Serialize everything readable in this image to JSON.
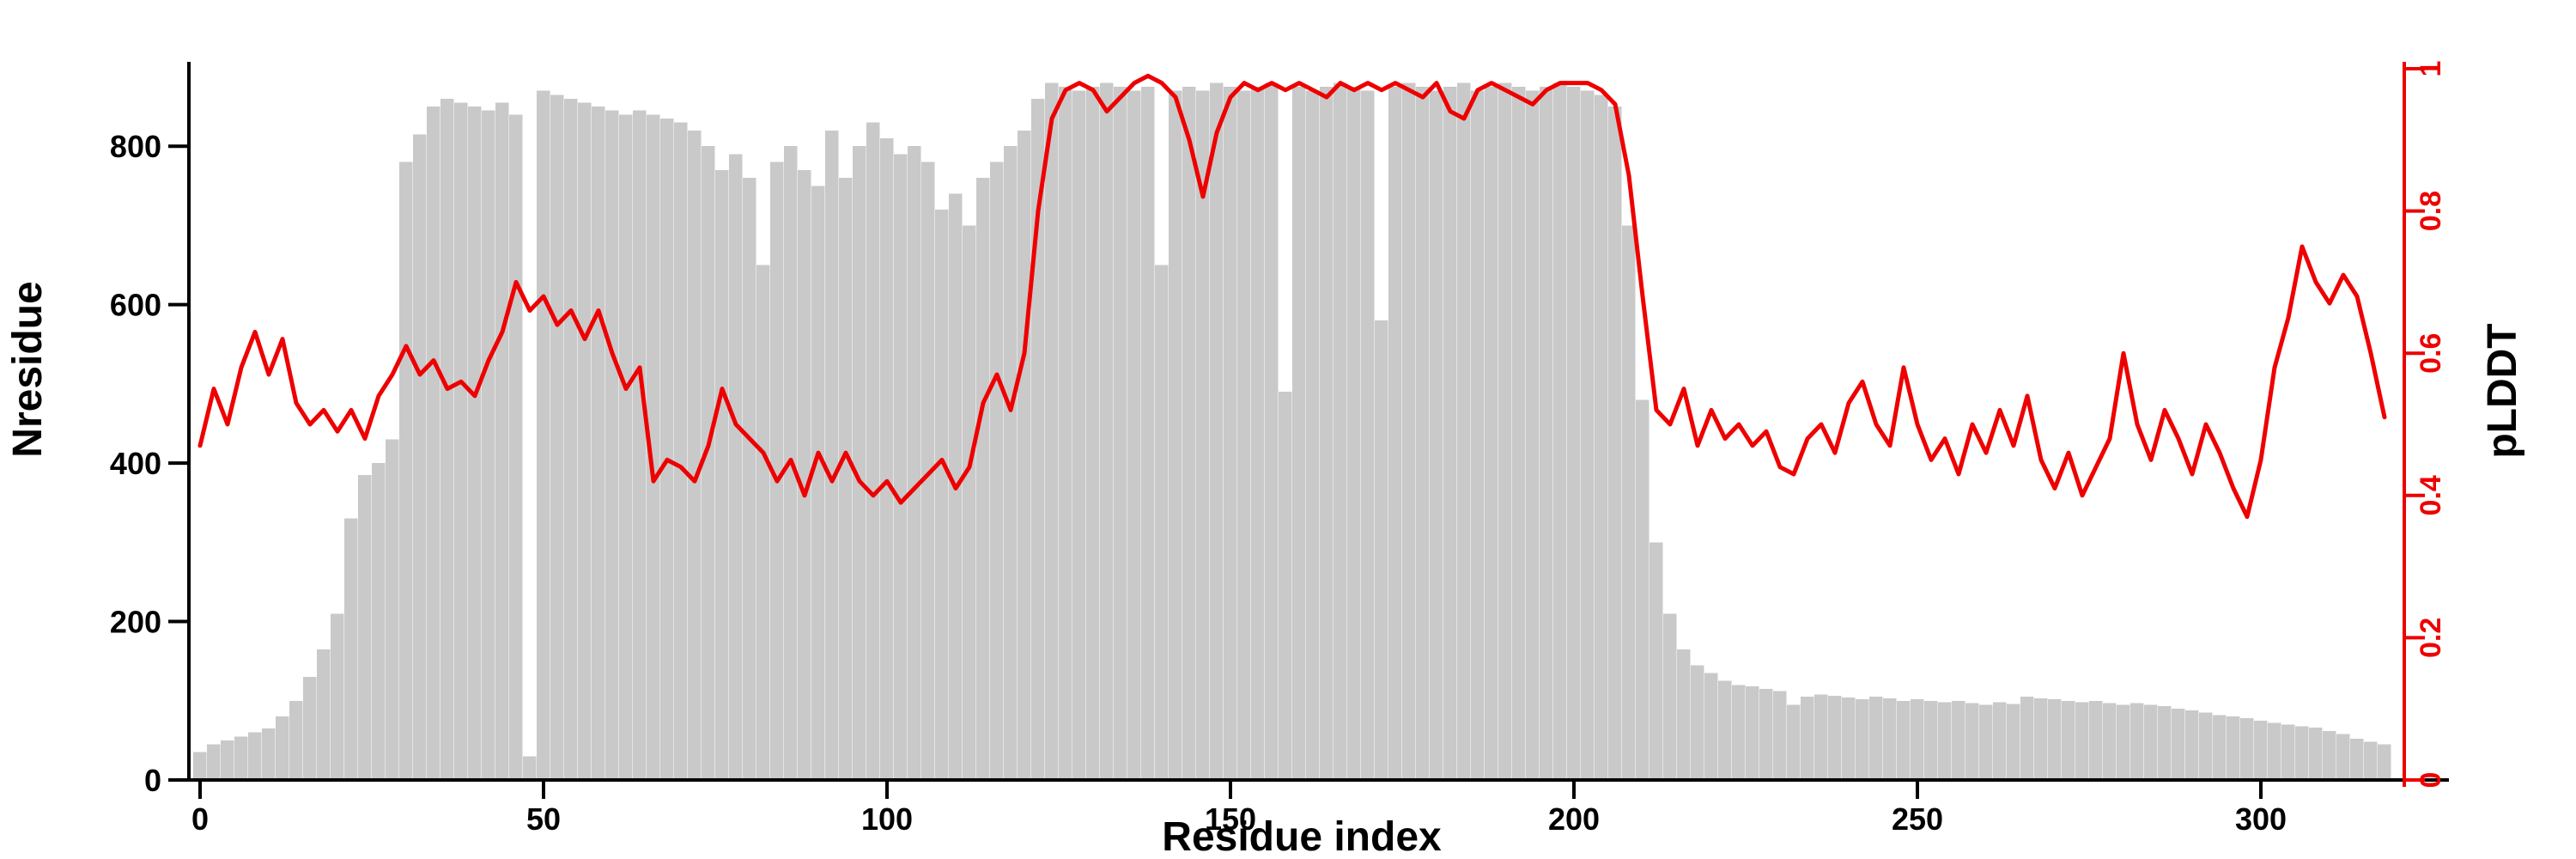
{
  "page": {
    "background": "#ffffff"
  },
  "colors": {
    "bar": "#c9c9c9",
    "line": "#ee0000",
    "left_axis": "#000000",
    "bottom_axis": "#000000",
    "right_axis": "#ee0000",
    "right_labels": "#ee0000"
  },
  "chart_data": {
    "type": "combo",
    "title": "",
    "xlabel": "Residue index",
    "ylabel_left": "Nresidue",
    "ylabel_right": "pLDDT",
    "xlim": [
      -5,
      322
    ],
    "ylim_left": [
      0,
      900
    ],
    "ylim_right": [
      0,
      1
    ],
    "xticks": [
      0,
      50,
      100,
      150,
      200,
      250,
      300
    ],
    "yticks_left": [
      0,
      200,
      400,
      600,
      800
    ],
    "yticks_right": [
      0,
      0.2,
      0.4,
      0.6,
      0.8,
      1
    ],
    "grid": false,
    "legend": "none",
    "x": [
      0,
      2,
      4,
      6,
      8,
      10,
      12,
      14,
      16,
      18,
      20,
      22,
      24,
      26,
      28,
      30,
      32,
      34,
      36,
      38,
      40,
      42,
      44,
      46,
      48,
      50,
      52,
      54,
      56,
      58,
      60,
      62,
      64,
      66,
      68,
      70,
      72,
      74,
      76,
      78,
      80,
      82,
      84,
      86,
      88,
      90,
      92,
      94,
      96,
      98,
      100,
      102,
      104,
      106,
      108,
      110,
      112,
      114,
      116,
      118,
      120,
      122,
      124,
      126,
      128,
      130,
      132,
      134,
      136,
      138,
      140,
      142,
      144,
      146,
      148,
      150,
      152,
      154,
      156,
      158,
      160,
      162,
      164,
      166,
      168,
      170,
      172,
      174,
      176,
      178,
      180,
      182,
      184,
      186,
      188,
      190,
      192,
      194,
      196,
      198,
      200,
      202,
      204,
      206,
      208,
      210,
      212,
      214,
      216,
      218,
      220,
      222,
      224,
      226,
      228,
      230,
      232,
      234,
      236,
      238,
      240,
      242,
      244,
      246,
      248,
      250,
      252,
      254,
      256,
      258,
      260,
      262,
      264,
      266,
      268,
      270,
      272,
      274,
      276,
      278,
      280,
      282,
      284,
      286,
      288,
      290,
      292,
      294,
      296,
      298,
      300,
      302,
      304,
      306,
      308,
      310,
      312,
      314,
      316,
      318
    ],
    "series": [
      {
        "name": "Nresidue",
        "type": "bar",
        "axis": "left",
        "color": "#c9c9c9",
        "values": [
          35,
          45,
          50,
          55,
          60,
          65,
          80,
          100,
          130,
          165,
          210,
          330,
          385,
          400,
          430,
          780,
          815,
          850,
          860,
          855,
          850,
          845,
          855,
          840,
          30,
          870,
          865,
          860,
          855,
          850,
          845,
          840,
          845,
          840,
          835,
          830,
          820,
          800,
          770,
          790,
          760,
          650,
          780,
          800,
          770,
          750,
          820,
          760,
          800,
          830,
          810,
          790,
          800,
          780,
          720,
          740,
          700,
          760,
          780,
          800,
          820,
          860,
          880,
          875,
          870,
          875,
          880,
          875,
          870,
          875,
          650,
          870,
          875,
          870,
          880,
          875,
          870,
          875,
          880,
          490,
          875,
          870,
          875,
          880,
          875,
          870,
          580,
          875,
          880,
          875,
          870,
          875,
          880,
          870,
          875,
          880,
          875,
          870,
          875,
          880,
          875,
          870,
          865,
          850,
          700,
          480,
          300,
          210,
          165,
          145,
          135,
          125,
          120,
          118,
          115,
          112,
          95,
          105,
          108,
          106,
          104,
          102,
          105,
          103,
          100,
          102,
          100,
          98,
          100,
          97,
          95,
          98,
          96,
          105,
          103,
          102,
          100,
          98,
          100,
          97,
          95,
          97,
          95,
          93,
          90,
          88,
          85,
          82,
          80,
          78,
          75,
          72,
          70,
          68,
          66,
          62,
          58,
          52,
          48,
          45
        ]
      },
      {
        "name": "pLDDT",
        "type": "line",
        "axis": "right",
        "color": "#ee0000",
        "values": [
          0.47,
          0.55,
          0.5,
          0.58,
          0.63,
          0.57,
          0.62,
          0.53,
          0.5,
          0.52,
          0.49,
          0.52,
          0.48,
          0.54,
          0.57,
          0.61,
          0.57,
          0.59,
          0.55,
          0.56,
          0.54,
          0.59,
          0.63,
          0.7,
          0.66,
          0.68,
          0.64,
          0.66,
          0.62,
          0.66,
          0.6,
          0.55,
          0.58,
          0.42,
          0.45,
          0.44,
          0.42,
          0.47,
          0.55,
          0.5,
          0.48,
          0.46,
          0.42,
          0.45,
          0.4,
          0.46,
          0.42,
          0.46,
          0.42,
          0.4,
          0.42,
          0.39,
          0.41,
          0.43,
          0.45,
          0.41,
          0.44,
          0.53,
          0.57,
          0.52,
          0.6,
          0.8,
          0.93,
          0.97,
          0.98,
          0.97,
          0.94,
          0.96,
          0.98,
          0.99,
          0.98,
          0.96,
          0.9,
          0.82,
          0.91,
          0.96,
          0.98,
          0.97,
          0.98,
          0.97,
          0.98,
          0.97,
          0.96,
          0.98,
          0.97,
          0.98,
          0.97,
          0.98,
          0.97,
          0.96,
          0.98,
          0.94,
          0.93,
          0.97,
          0.98,
          0.97,
          0.96,
          0.95,
          0.97,
          0.98,
          0.98,
          0.98,
          0.97,
          0.95,
          0.85,
          0.68,
          0.52,
          0.5,
          0.55,
          0.47,
          0.52,
          0.48,
          0.5,
          0.47,
          0.49,
          0.44,
          0.43,
          0.48,
          0.5,
          0.46,
          0.53,
          0.56,
          0.5,
          0.47,
          0.58,
          0.5,
          0.45,
          0.48,
          0.43,
          0.5,
          0.46,
          0.52,
          0.47,
          0.54,
          0.45,
          0.41,
          0.46,
          0.4,
          0.44,
          0.48,
          0.6,
          0.5,
          0.45,
          0.52,
          0.48,
          0.43,
          0.5,
          0.46,
          0.41,
          0.37,
          0.45,
          0.58,
          0.65,
          0.75,
          0.7,
          0.67,
          0.71,
          0.68,
          0.6,
          0.51
        ]
      }
    ]
  }
}
